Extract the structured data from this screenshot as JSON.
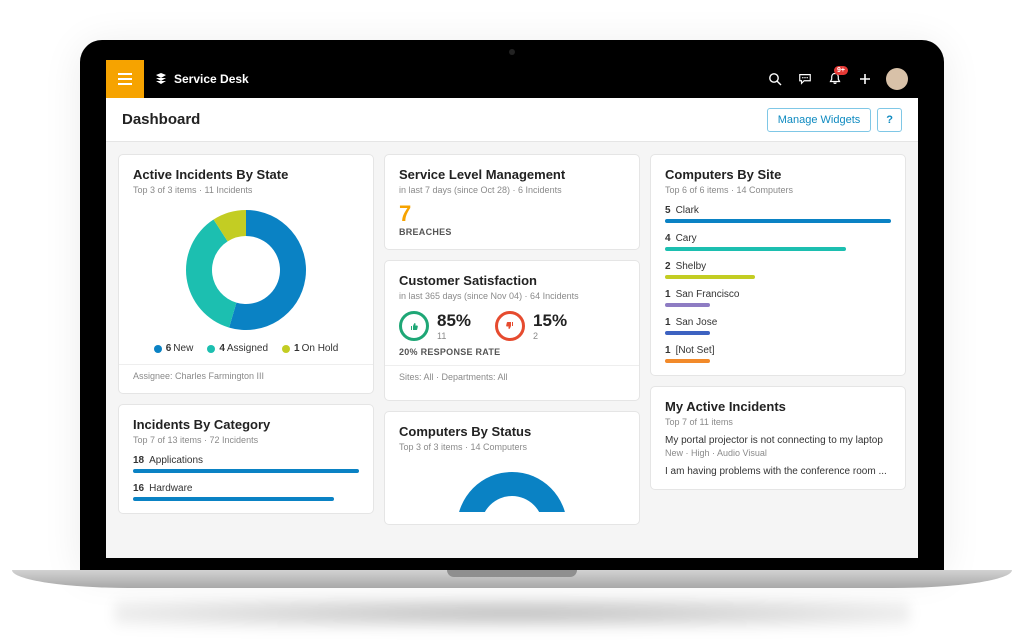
{
  "header": {
    "app_name": "Service Desk",
    "notification_badge": "9+",
    "accent_color": "#f6a300"
  },
  "page": {
    "title": "Dashboard",
    "manage_widgets_label": "Manage Widgets",
    "help_label": "?"
  },
  "active_incidents": {
    "title": "Active Incidents By State",
    "subtitle": "Top 3 of 3 items  ·  11 Incidents",
    "type": "donut",
    "donut_outer_r": 60,
    "donut_inner_r": 34,
    "slices": [
      {
        "label": "New",
        "value": 6,
        "color": "#0a82c4"
      },
      {
        "label": "Assigned",
        "value": 4,
        "color": "#1cbfb0"
      },
      {
        "label": "On Hold",
        "value": 1,
        "color": "#c3cd23"
      }
    ],
    "footer": "Assignee: Charles Farmington III"
  },
  "slm": {
    "title": "Service Level Management",
    "subtitle": "in last 7 days (since Oct 28)  ·  6 Incidents",
    "value": "7",
    "value_color": "#f6a300",
    "caption": "BREACHES"
  },
  "csat": {
    "title": "Customer Satisfaction",
    "subtitle": "in last 365 days (since Nov 04)  ·  64 Incidents",
    "good": {
      "pct": "85%",
      "count": "11",
      "color": "#1ea776"
    },
    "bad": {
      "pct": "15%",
      "count": "2",
      "color": "#e64b2f"
    },
    "response_rate": "20% RESPONSE RATE",
    "footer": "Sites: All   ·   Departments: All"
  },
  "computers_by_status": {
    "title": "Computers By Status",
    "subtitle": "Top 3 of 3 items  ·  14 Computers",
    "type": "donut",
    "color": "#0a82c4"
  },
  "computers_by_site": {
    "title": "Computers By Site",
    "subtitle": "Top 6 of 6 items  ·  14 Computers",
    "max": 5,
    "rows": [
      {
        "count": 5,
        "label": "Clark",
        "color": "#0a82c4"
      },
      {
        "count": 4,
        "label": "Cary",
        "color": "#1cbfb0"
      },
      {
        "count": 2,
        "label": "Shelby",
        "color": "#c3cd23"
      },
      {
        "count": 1,
        "label": "San Francisco",
        "color": "#8e7cc3"
      },
      {
        "count": 1,
        "label": "San Jose",
        "color": "#3d62c1"
      },
      {
        "count": 1,
        "label": "[Not Set]",
        "color": "#f28a2a"
      }
    ]
  },
  "my_active_incidents": {
    "title": "My Active Incidents",
    "subtitle": "Top 7 of 11 items",
    "items": [
      {
        "title": "My portal projector is not connecting to my laptop",
        "meta": "New  ·  High  ·  Audio Visual"
      },
      {
        "title": "I am having problems with the conference room ...",
        "meta": ""
      }
    ]
  },
  "incidents_by_category": {
    "title": "Incidents By Category",
    "subtitle": "Top 7 of 13 items  ·  72 Incidents",
    "max": 18,
    "bar_color": "#0a82c4",
    "rows": [
      {
        "count": 18,
        "label": "Applications"
      },
      {
        "count": 16,
        "label": "Hardware"
      }
    ]
  }
}
